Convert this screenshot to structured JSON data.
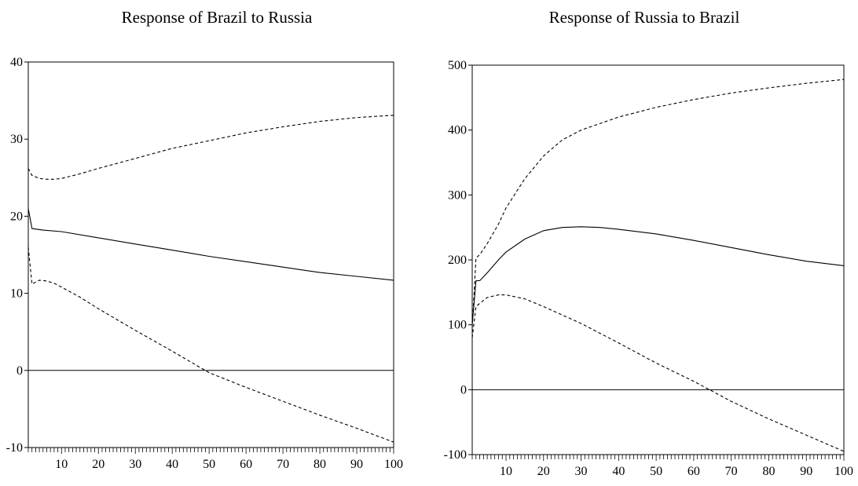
{
  "chart_data": [
    {
      "type": "line",
      "title": "Response of Brazil to Russia",
      "xlabel": "",
      "ylabel": "",
      "xlim": [
        1,
        100
      ],
      "ylim": [
        -10,
        40
      ],
      "x_ticks": [
        10,
        20,
        30,
        40,
        50,
        60,
        70,
        80,
        90,
        100
      ],
      "y_ticks": [
        -10,
        0,
        10,
        20,
        30,
        40
      ],
      "grid": false,
      "zero_line": true,
      "series": [
        {
          "style": "solid",
          "x": [
            1,
            2,
            5,
            10,
            20,
            30,
            40,
            50,
            60,
            70,
            80,
            90,
            100
          ],
          "y": [
            21.0,
            18.4,
            18.2,
            18.0,
            17.2,
            16.4,
            15.6,
            14.8,
            14.1,
            13.4,
            12.7,
            12.2,
            11.7
          ]
        },
        {
          "style": "dashed",
          "x": [
            1,
            2,
            4,
            6,
            8,
            10,
            15,
            20,
            30,
            40,
            50,
            60,
            70,
            80,
            90,
            100
          ],
          "y": [
            26.2,
            25.3,
            24.9,
            24.8,
            24.8,
            24.9,
            25.5,
            26.2,
            27.5,
            28.8,
            29.8,
            30.8,
            31.6,
            32.3,
            32.8,
            33.1
          ]
        },
        {
          "style": "dashed",
          "x": [
            1,
            2,
            4,
            6,
            8,
            10,
            15,
            20,
            30,
            40,
            50,
            60,
            70,
            80,
            90,
            100
          ],
          "y": [
            16.0,
            11.2,
            11.7,
            11.6,
            11.3,
            10.8,
            9.5,
            8.0,
            5.2,
            2.5,
            -0.3,
            -2.2,
            -4.0,
            -5.8,
            -7.5,
            -9.3
          ]
        }
      ]
    },
    {
      "type": "line",
      "title": "Response of Russia to Brazil",
      "xlabel": "",
      "ylabel": "",
      "xlim": [
        1,
        100
      ],
      "ylim": [
        -100,
        500
      ],
      "x_ticks": [
        10,
        20,
        30,
        40,
        50,
        60,
        70,
        80,
        90,
        100
      ],
      "y_ticks": [
        -100,
        0,
        100,
        200,
        300,
        400,
        500
      ],
      "grid": false,
      "zero_line": true,
      "series": [
        {
          "style": "solid",
          "x": [
            1,
            2,
            3,
            5,
            8,
            10,
            15,
            20,
            25,
            30,
            35,
            40,
            50,
            60,
            70,
            80,
            90,
            100
          ],
          "y": [
            100,
            168,
            168,
            180,
            200,
            212,
            232,
            245,
            250,
            251,
            250,
            247,
            240,
            230,
            219,
            208,
            198,
            191
          ]
        },
        {
          "style": "dashed",
          "x": [
            1,
            2,
            3,
            5,
            8,
            10,
            15,
            20,
            25,
            30,
            40,
            50,
            60,
            70,
            80,
            90,
            100
          ],
          "y": [
            95,
            203,
            208,
            225,
            255,
            280,
            325,
            360,
            385,
            400,
            420,
            435,
            447,
            457,
            465,
            472,
            478
          ]
        },
        {
          "style": "dashed",
          "x": [
            1,
            2,
            3,
            5,
            8,
            10,
            15,
            20,
            30,
            40,
            50,
            60,
            70,
            80,
            90,
            100
          ],
          "y": [
            80,
            128,
            133,
            142,
            146,
            146,
            140,
            128,
            102,
            72,
            41,
            13,
            -18,
            -45,
            -70,
            -95
          ]
        }
      ]
    }
  ]
}
